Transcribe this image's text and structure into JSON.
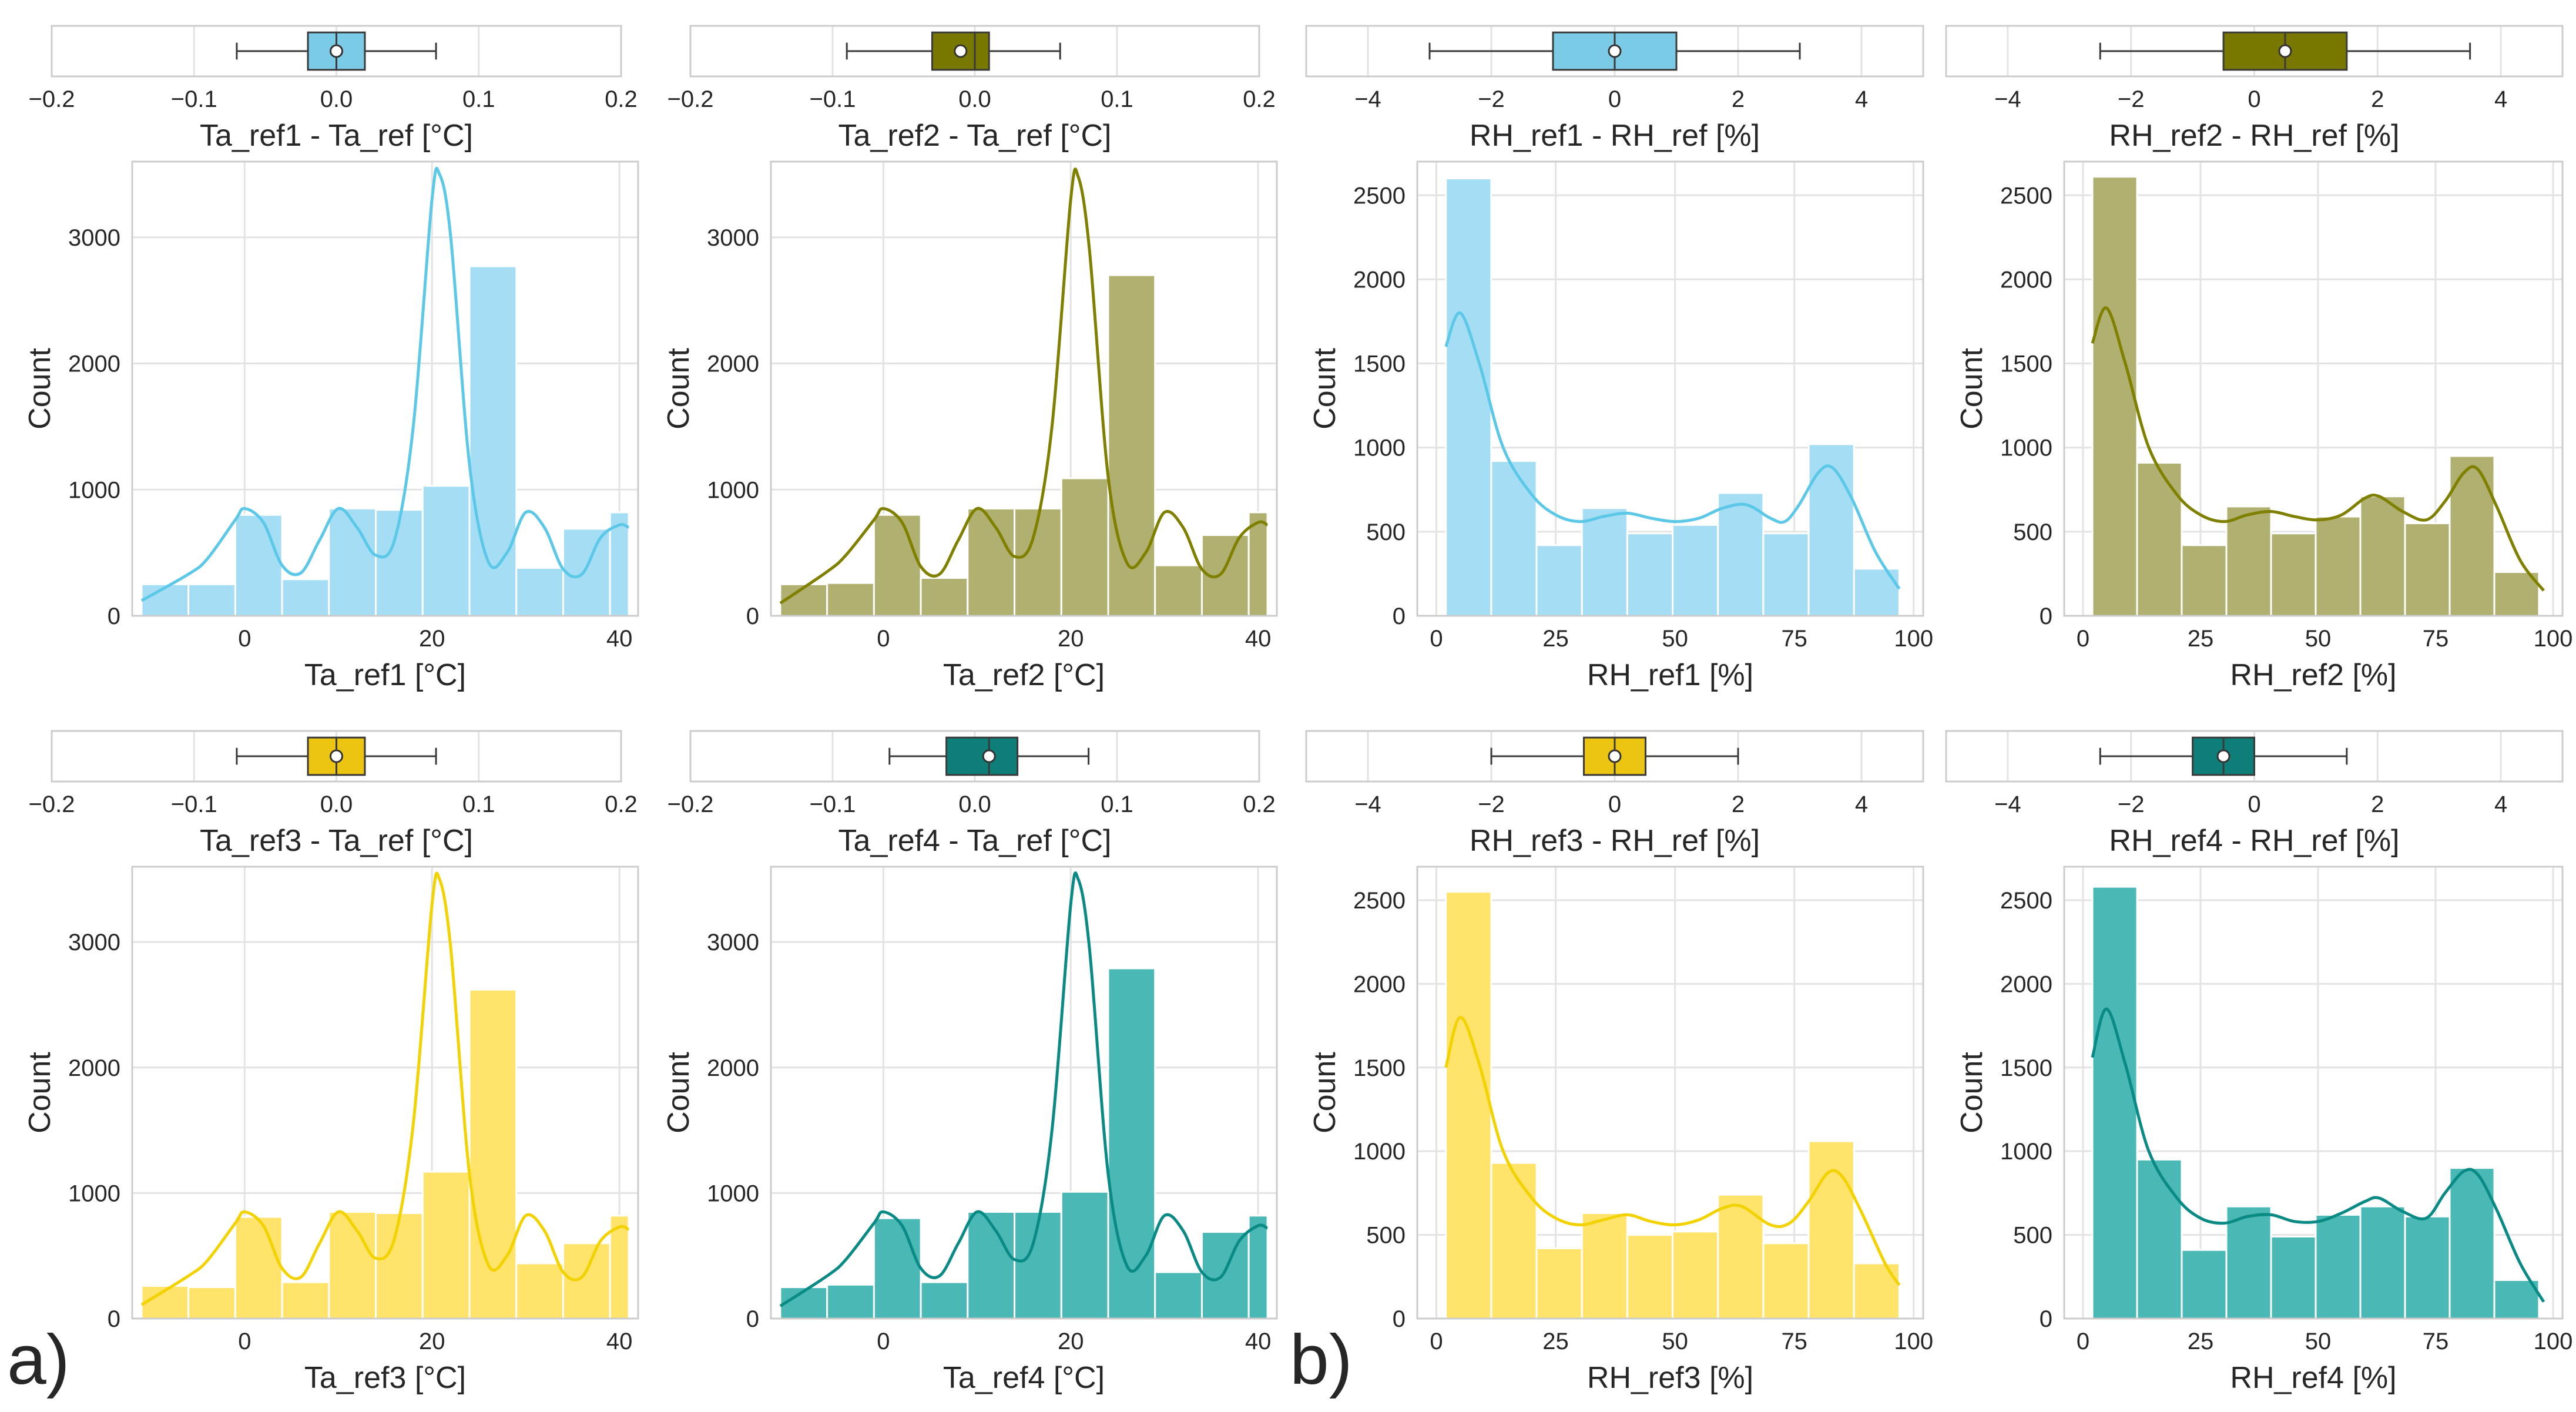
{
  "panel_labels": [
    "a)",
    "b)"
  ],
  "colors": {
    "ref1": "#7ccbe6",
    "ref2": "#787800",
    "ref3": "#ecc412",
    "ref4": "#0f7e78",
    "hist_ref1": "#a5def4",
    "hist_ref2": "#b0b070",
    "hist_ref3": "#ffe36b",
    "hist_ref4": "#4ab8b4",
    "kde_ref1": "#5cc8e8",
    "kde_ref2": "#7f7f00",
    "kde_ref3": "#f2d200",
    "kde_ref4": "#0a8a84"
  },
  "chart_data": [
    {
      "id": "box-ta-ref1",
      "type": "box",
      "xlabel": "Ta_ref1 - Ta_ref [°C]",
      "xlim": [
        -0.2,
        0.2
      ],
      "xticks": [
        -0.2,
        -0.1,
        0.0,
        0.1,
        0.2
      ],
      "xticklabels": [
        "−0.2",
        "−0.1",
        "0.0",
        "0.1",
        "0.2"
      ],
      "whisker_low": -0.07,
      "q1": -0.02,
      "median": 0.0,
      "q3": 0.02,
      "whisker_high": 0.07,
      "mean": 0.0
    },
    {
      "id": "box-ta-ref2",
      "type": "box",
      "xlabel": "Ta_ref2 - Ta_ref [°C]",
      "xlim": [
        -0.2,
        0.2
      ],
      "xticks": [
        -0.2,
        -0.1,
        0.0,
        0.1,
        0.2
      ],
      "xticklabels": [
        "−0.2",
        "−0.1",
        "0.0",
        "0.1",
        "0.2"
      ],
      "whisker_low": -0.09,
      "q1": -0.03,
      "median": 0.0,
      "q3": 0.01,
      "whisker_high": 0.06,
      "mean": -0.01
    },
    {
      "id": "box-rh-ref1",
      "type": "box",
      "xlabel": "RH_ref1 - RH_ref [%]",
      "xlim": [
        -5,
        5
      ],
      "xticks": [
        -4,
        -2,
        0,
        2,
        4
      ],
      "xticklabels": [
        "−4",
        "−2",
        "0",
        "2",
        "4"
      ],
      "whisker_low": -3,
      "q1": -1,
      "median": 0,
      "q3": 1,
      "whisker_high": 3,
      "mean": 0
    },
    {
      "id": "box-rh-ref2",
      "type": "box",
      "xlabel": "RH_ref2 - RH_ref [%]",
      "xlim": [
        -5,
        5
      ],
      "xticks": [
        -4,
        -2,
        0,
        2,
        4
      ],
      "xticklabels": [
        "−4",
        "−2",
        "0",
        "2",
        "4"
      ],
      "whisker_low": -2.5,
      "q1": -0.5,
      "median": 0.5,
      "q3": 1.5,
      "whisker_high": 3.5,
      "mean": 0.5
    },
    {
      "id": "hist-ta-ref1",
      "type": "bar",
      "xlabel": "Ta_ref1 [°C]",
      "ylabel": "Count",
      "xlim": [
        -12,
        42
      ],
      "ylim": [
        0,
        3600
      ],
      "xticks": [
        0,
        20,
        40
      ],
      "yticks": [
        0,
        1000,
        2000,
        3000
      ],
      "edges": [
        -11,
        -6,
        -1,
        4,
        9,
        14,
        19,
        24,
        29,
        34,
        39,
        41
      ],
      "values": [
        250,
        250,
        800,
        290,
        850,
        840,
        1030,
        2770,
        380,
        690,
        820
      ],
      "kde": [
        [
          -11,
          120
        ],
        [
          -6,
          330
        ],
        [
          -4,
          450
        ],
        [
          -1,
          760
        ],
        [
          0,
          850
        ],
        [
          2,
          740
        ],
        [
          4,
          400
        ],
        [
          6,
          340
        ],
        [
          8,
          600
        ],
        [
          10,
          850
        ],
        [
          12,
          700
        ],
        [
          14,
          480
        ],
        [
          16,
          600
        ],
        [
          18,
          1500
        ],
        [
          20,
          3300
        ],
        [
          20.8,
          3500
        ],
        [
          22,
          3000
        ],
        [
          24,
          1200
        ],
        [
          26,
          430
        ],
        [
          28,
          500
        ],
        [
          30,
          820
        ],
        [
          32,
          700
        ],
        [
          34,
          370
        ],
        [
          36,
          330
        ],
        [
          38,
          620
        ],
        [
          40,
          720
        ],
        [
          41,
          700
        ]
      ]
    },
    {
      "id": "hist-ta-ref2",
      "type": "bar",
      "xlabel": "Ta_ref2 [°C]",
      "ylabel": "Count",
      "xlim": [
        -12,
        42
      ],
      "ylim": [
        0,
        3600
      ],
      "xticks": [
        0,
        20,
        40
      ],
      "yticks": [
        0,
        1000,
        2000,
        3000
      ],
      "edges": [
        -11,
        -6,
        -1,
        4,
        9,
        14,
        19,
        24,
        29,
        34,
        39,
        41
      ],
      "values": [
        250,
        260,
        800,
        300,
        850,
        850,
        1090,
        2700,
        400,
        640,
        820
      ],
      "kde": [
        [
          -11,
          100
        ],
        [
          -6,
          350
        ],
        [
          -4,
          480
        ],
        [
          -1,
          760
        ],
        [
          0,
          850
        ],
        [
          2,
          740
        ],
        [
          4,
          390
        ],
        [
          6,
          330
        ],
        [
          8,
          600
        ],
        [
          10,
          850
        ],
        [
          12,
          700
        ],
        [
          14,
          470
        ],
        [
          16,
          620
        ],
        [
          18,
          1500
        ],
        [
          20,
          3300
        ],
        [
          20.8,
          3480
        ],
        [
          22,
          2900
        ],
        [
          24,
          1100
        ],
        [
          26,
          420
        ],
        [
          28,
          500
        ],
        [
          30,
          820
        ],
        [
          32,
          700
        ],
        [
          34,
          370
        ],
        [
          36,
          330
        ],
        [
          38,
          620
        ],
        [
          40,
          740
        ],
        [
          41,
          720
        ]
      ]
    },
    {
      "id": "hist-rh-ref1",
      "type": "bar",
      "xlabel": "RH_ref1 [%]",
      "ylabel": "Count",
      "xlim": [
        -4,
        102
      ],
      "ylim": [
        0,
        2700
      ],
      "xticks": [
        0,
        25,
        50,
        75,
        100
      ],
      "yticks": [
        0,
        500,
        1000,
        1500,
        2000,
        2500
      ],
      "edges": [
        2,
        11.5,
        21,
        30.5,
        40,
        49.5,
        59,
        68.5,
        78,
        87.5,
        97
      ],
      "values": [
        2600,
        920,
        420,
        640,
        490,
        540,
        730,
        490,
        1020,
        280
      ],
      "kde": [
        [
          2,
          1600
        ],
        [
          5,
          1800
        ],
        [
          9,
          1500
        ],
        [
          14,
          1000
        ],
        [
          20,
          720
        ],
        [
          25,
          600
        ],
        [
          30,
          560
        ],
        [
          35,
          590
        ],
        [
          40,
          610
        ],
        [
          45,
          580
        ],
        [
          50,
          560
        ],
        [
          55,
          580
        ],
        [
          60,
          640
        ],
        [
          65,
          660
        ],
        [
          70,
          580
        ],
        [
          73,
          560
        ],
        [
          76,
          660
        ],
        [
          80,
          850
        ],
        [
          83,
          880
        ],
        [
          87,
          700
        ],
        [
          92,
          380
        ],
        [
          97,
          160
        ]
      ]
    },
    {
      "id": "hist-rh-ref2",
      "type": "bar",
      "xlabel": "RH_ref2 [%]",
      "ylabel": "Count",
      "xlim": [
        -4,
        102
      ],
      "ylim": [
        0,
        2700
      ],
      "xticks": [
        0,
        25,
        50,
        75,
        100
      ],
      "yticks": [
        0,
        500,
        1000,
        1500,
        2000,
        2500
      ],
      "edges": [
        2,
        11.5,
        21,
        30.5,
        40,
        49.5,
        59,
        68.5,
        78,
        87.5,
        97
      ],
      "values": [
        2610,
        910,
        420,
        650,
        490,
        590,
        710,
        550,
        950,
        260
      ],
      "kde": [
        [
          2,
          1620
        ],
        [
          5,
          1830
        ],
        [
          9,
          1500
        ],
        [
          14,
          1000
        ],
        [
          20,
          720
        ],
        [
          25,
          600
        ],
        [
          30,
          560
        ],
        [
          35,
          600
        ],
        [
          40,
          620
        ],
        [
          45,
          590
        ],
        [
          50,
          570
        ],
        [
          55,
          600
        ],
        [
          60,
          700
        ],
        [
          63,
          710
        ],
        [
          68,
          620
        ],
        [
          73,
          570
        ],
        [
          77,
          680
        ],
        [
          81,
          850
        ],
        [
          84,
          870
        ],
        [
          88,
          650
        ],
        [
          93,
          330
        ],
        [
          98,
          150
        ]
      ]
    },
    {
      "id": "box-ta-ref3",
      "type": "box",
      "xlabel": "Ta_ref3 - Ta_ref [°C]",
      "xlim": [
        -0.2,
        0.2
      ],
      "xticks": [
        -0.2,
        -0.1,
        0.0,
        0.1,
        0.2
      ],
      "xticklabels": [
        "−0.2",
        "−0.1",
        "0.0",
        "0.1",
        "0.2"
      ],
      "whisker_low": -0.07,
      "q1": -0.02,
      "median": 0.0,
      "q3": 0.02,
      "whisker_high": 0.07,
      "mean": 0.0
    },
    {
      "id": "box-ta-ref4",
      "type": "box",
      "xlabel": "Ta_ref4 - Ta_ref [°C]",
      "xlim": [
        -0.2,
        0.2
      ],
      "xticks": [
        -0.2,
        -0.1,
        0.0,
        0.1,
        0.2
      ],
      "xticklabels": [
        "−0.2",
        "−0.1",
        "0.0",
        "0.1",
        "0.2"
      ],
      "whisker_low": -0.06,
      "q1": -0.02,
      "median": 0.01,
      "q3": 0.03,
      "whisker_high": 0.08,
      "mean": 0.01
    },
    {
      "id": "box-rh-ref3",
      "type": "box",
      "xlabel": "RH_ref3 - RH_ref [%]",
      "xlim": [
        -5,
        5
      ],
      "xticks": [
        -4,
        -2,
        0,
        2,
        4
      ],
      "xticklabels": [
        "−4",
        "−2",
        "0",
        "2",
        "4"
      ],
      "whisker_low": -2,
      "q1": -0.5,
      "median": 0,
      "q3": 0.5,
      "whisker_high": 2,
      "mean": 0
    },
    {
      "id": "box-rh-ref4",
      "type": "box",
      "xlabel": "RH_ref4 - RH_ref [%]",
      "xlim": [
        -5,
        5
      ],
      "xticks": [
        -4,
        -2,
        0,
        2,
        4
      ],
      "xticklabels": [
        "−4",
        "−2",
        "0",
        "2",
        "4"
      ],
      "whisker_low": -2.5,
      "q1": -1,
      "median": -0.5,
      "q3": 0,
      "whisker_high": 1.5,
      "mean": -0.5
    },
    {
      "id": "hist-ta-ref3",
      "type": "bar",
      "xlabel": "Ta_ref3 [°C]",
      "ylabel": "Count",
      "xlim": [
        -12,
        42
      ],
      "ylim": [
        0,
        3600
      ],
      "xticks": [
        0,
        20,
        40
      ],
      "yticks": [
        0,
        1000,
        2000,
        3000
      ],
      "edges": [
        -11,
        -6,
        -1,
        4,
        9,
        14,
        19,
        24,
        29,
        34,
        39,
        41
      ],
      "values": [
        260,
        250,
        810,
        290,
        850,
        840,
        1170,
        2620,
        440,
        600,
        820
      ],
      "kde": [
        [
          -11,
          110
        ],
        [
          -6,
          340
        ],
        [
          -4,
          460
        ],
        [
          -1,
          760
        ],
        [
          0,
          850
        ],
        [
          2,
          740
        ],
        [
          4,
          400
        ],
        [
          6,
          330
        ],
        [
          8,
          600
        ],
        [
          10,
          850
        ],
        [
          12,
          700
        ],
        [
          14,
          480
        ],
        [
          16,
          640
        ],
        [
          18,
          1550
        ],
        [
          20,
          3300
        ],
        [
          20.8,
          3500
        ],
        [
          22,
          2950
        ],
        [
          24,
          1150
        ],
        [
          26,
          430
        ],
        [
          28,
          500
        ],
        [
          30,
          820
        ],
        [
          32,
          700
        ],
        [
          34,
          370
        ],
        [
          36,
          330
        ],
        [
          38,
          620
        ],
        [
          40,
          730
        ],
        [
          41,
          710
        ]
      ]
    },
    {
      "id": "hist-ta-ref4",
      "type": "bar",
      "xlabel": "Ta_ref4 [°C]",
      "ylabel": "Count",
      "xlim": [
        -12,
        42
      ],
      "ylim": [
        0,
        3600
      ],
      "xticks": [
        0,
        20,
        40
      ],
      "yticks": [
        0,
        1000,
        2000,
        3000
      ],
      "edges": [
        -11,
        -6,
        -1,
        4,
        9,
        14,
        19,
        24,
        29,
        34,
        39,
        41
      ],
      "values": [
        250,
        270,
        800,
        290,
        850,
        850,
        1010,
        2790,
        370,
        690,
        820
      ],
      "kde": [
        [
          -11,
          100
        ],
        [
          -6,
          340
        ],
        [
          -4,
          470
        ],
        [
          -1,
          760
        ],
        [
          0,
          850
        ],
        [
          2,
          740
        ],
        [
          4,
          400
        ],
        [
          6,
          340
        ],
        [
          8,
          600
        ],
        [
          10,
          850
        ],
        [
          12,
          700
        ],
        [
          14,
          470
        ],
        [
          16,
          600
        ],
        [
          18,
          1500
        ],
        [
          20,
          3300
        ],
        [
          20.8,
          3500
        ],
        [
          22,
          2950
        ],
        [
          24,
          1150
        ],
        [
          26,
          420
        ],
        [
          28,
          500
        ],
        [
          30,
          820
        ],
        [
          32,
          700
        ],
        [
          34,
          370
        ],
        [
          36,
          330
        ],
        [
          38,
          620
        ],
        [
          40,
          740
        ],
        [
          41,
          720
        ]
      ]
    },
    {
      "id": "hist-rh-ref3",
      "type": "bar",
      "xlabel": "RH_ref3 [%]",
      "ylabel": "Count",
      "xlim": [
        -4,
        102
      ],
      "ylim": [
        0,
        2700
      ],
      "xticks": [
        0,
        25,
        50,
        75,
        100
      ],
      "yticks": [
        0,
        500,
        1000,
        1500,
        2000,
        2500
      ],
      "edges": [
        2,
        11.5,
        21,
        30.5,
        40,
        49.5,
        59,
        68.5,
        78,
        87.5,
        97
      ],
      "values": [
        2550,
        930,
        420,
        630,
        500,
        520,
        740,
        450,
        1060,
        330
      ],
      "kde": [
        [
          2,
          1500
        ],
        [
          5,
          1800
        ],
        [
          9,
          1520
        ],
        [
          14,
          1000
        ],
        [
          20,
          720
        ],
        [
          25,
          600
        ],
        [
          30,
          560
        ],
        [
          35,
          590
        ],
        [
          40,
          620
        ],
        [
          45,
          580
        ],
        [
          50,
          560
        ],
        [
          55,
          590
        ],
        [
          60,
          660
        ],
        [
          64,
          670
        ],
        [
          70,
          560
        ],
        [
          74,
          570
        ],
        [
          78,
          700
        ],
        [
          82,
          870
        ],
        [
          85,
          850
        ],
        [
          89,
          640
        ],
        [
          94,
          330
        ],
        [
          97,
          200
        ]
      ]
    },
    {
      "id": "hist-rh-ref4",
      "type": "bar",
      "xlabel": "RH_ref4 [%]",
      "ylabel": "Count",
      "xlim": [
        -4,
        102
      ],
      "ylim": [
        0,
        2700
      ],
      "xticks": [
        0,
        25,
        50,
        75,
        100
      ],
      "yticks": [
        0,
        500,
        1000,
        1500,
        2000,
        2500
      ],
      "edges": [
        2,
        11.5,
        21,
        30.5,
        40,
        49.5,
        59,
        68.5,
        78,
        87.5,
        97
      ],
      "values": [
        2580,
        950,
        410,
        670,
        490,
        620,
        670,
        610,
        900,
        230
      ],
      "kde": [
        [
          2,
          1560
        ],
        [
          5,
          1850
        ],
        [
          9,
          1520
        ],
        [
          14,
          1000
        ],
        [
          20,
          720
        ],
        [
          25,
          600
        ],
        [
          30,
          570
        ],
        [
          35,
          610
        ],
        [
          40,
          620
        ],
        [
          45,
          580
        ],
        [
          50,
          580
        ],
        [
          55,
          630
        ],
        [
          60,
          700
        ],
        [
          63,
          720
        ],
        [
          68,
          640
        ],
        [
          73,
          600
        ],
        [
          77,
          750
        ],
        [
          81,
          880
        ],
        [
          84,
          860
        ],
        [
          88,
          650
        ],
        [
          93,
          330
        ],
        [
          98,
          100
        ]
      ]
    }
  ]
}
